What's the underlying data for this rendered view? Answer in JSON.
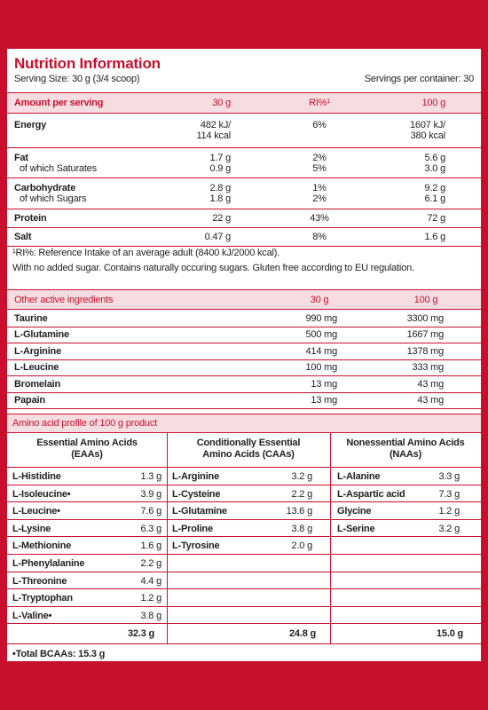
{
  "header": {
    "title": "Nutrition Information",
    "serving_size": "Serving Size: 30 g (3/4 scoop)",
    "servings_per_container": "Servings per container: 30"
  },
  "nutrition": {
    "columns": [
      "Amount per serving",
      "30 g",
      "RI%¹",
      "100 g"
    ],
    "rows": [
      [
        [
          "Energy"
        ],
        [
          "482 kJ/",
          "114 kcal"
        ],
        [
          "6%"
        ],
        [
          "1607 kJ/",
          "380 kcal"
        ]
      ],
      [
        [
          "Fat",
          "of which Saturates"
        ],
        [
          "1.7 g",
          "0.9 g"
        ],
        [
          "2%",
          "5%"
        ],
        [
          "5.6 g",
          "3.0 g"
        ]
      ],
      [
        [
          "Carbohydrate",
          "of which Sugars"
        ],
        [
          "2.8 g",
          "1.8 g"
        ],
        [
          "1%",
          "2%"
        ],
        [
          "9.2 g",
          "6.1 g"
        ]
      ],
      [
        [
          "Protein"
        ],
        [
          "22 g"
        ],
        [
          "43%"
        ],
        [
          "72 g"
        ]
      ],
      [
        [
          "Salt"
        ],
        [
          "0.47 g"
        ],
        [
          "8%"
        ],
        [
          "1.6 g"
        ]
      ]
    ]
  },
  "footnotes": [
    "¹RI%: Reference Intake of an average adult (8400 kJ/2000 kcal).",
    "With no added sugar. Contains naturally occuring sugars. Gluten free according to EU regulation."
  ],
  "active": {
    "columns": [
      "Other active ingredients",
      "30 g",
      "100 g"
    ],
    "rows": [
      [
        "Taurine",
        "990 mg",
        "3300 mg"
      ],
      [
        "L-Glutamine",
        "500 mg",
        "1667 mg"
      ],
      [
        "L-Arginine",
        "414 mg",
        "1378 mg"
      ],
      [
        "L-Leucine",
        "100 mg",
        "333 mg"
      ],
      [
        "Bromelain",
        "13 mg",
        "43 mg"
      ],
      [
        "Papain",
        "13 mg",
        "43 mg"
      ]
    ]
  },
  "amino": {
    "title": "Amino acid profile of 100 g product",
    "groups": [
      {
        "heading": [
          "Essential Amino Acids",
          "(EAAs)"
        ],
        "items": [
          [
            "L-Histidine",
            "1.3 g"
          ],
          [
            "L-Isoleucine•",
            "3.9 g"
          ],
          [
            "L-Leucine•",
            "7.6 g"
          ],
          [
            "L-Lysine",
            "6.3 g"
          ],
          [
            "L-Methionine",
            "1.6 g"
          ],
          [
            "L-Phenylalanine",
            "2.2 g"
          ],
          [
            "L-Threonine",
            "4.4 g"
          ],
          [
            "L-Tryptophan",
            "1.2 g"
          ],
          [
            "L-Valine•",
            "3.8 g"
          ]
        ],
        "total": "32.3 g"
      },
      {
        "heading": [
          "Conditionally Essential",
          "Amino Acids (CAAs)"
        ],
        "items": [
          [
            "L-Arginine",
            "3.2 g"
          ],
          [
            "L-Cysteine",
            "2.2 g"
          ],
          [
            "L-Glutamine",
            "13.6 g"
          ],
          [
            "L-Proline",
            "3.8 g"
          ],
          [
            "L-Tyrosine",
            "2.0 g"
          ]
        ],
        "total": "24.8 g"
      },
      {
        "heading": [
          "Nonessential Amino Acids",
          "(NAAs)"
        ],
        "items": [
          [
            "L-Alanine",
            "3.3 g"
          ],
          [
            "L-Aspartic acid",
            "7.3 g"
          ],
          [
            "Glycine",
            "1.2 g"
          ],
          [
            "L-Serine",
            "3.2 g"
          ]
        ],
        "total": "15.0 g"
      }
    ],
    "note": "•Total BCAAs: 15.3 g"
  }
}
